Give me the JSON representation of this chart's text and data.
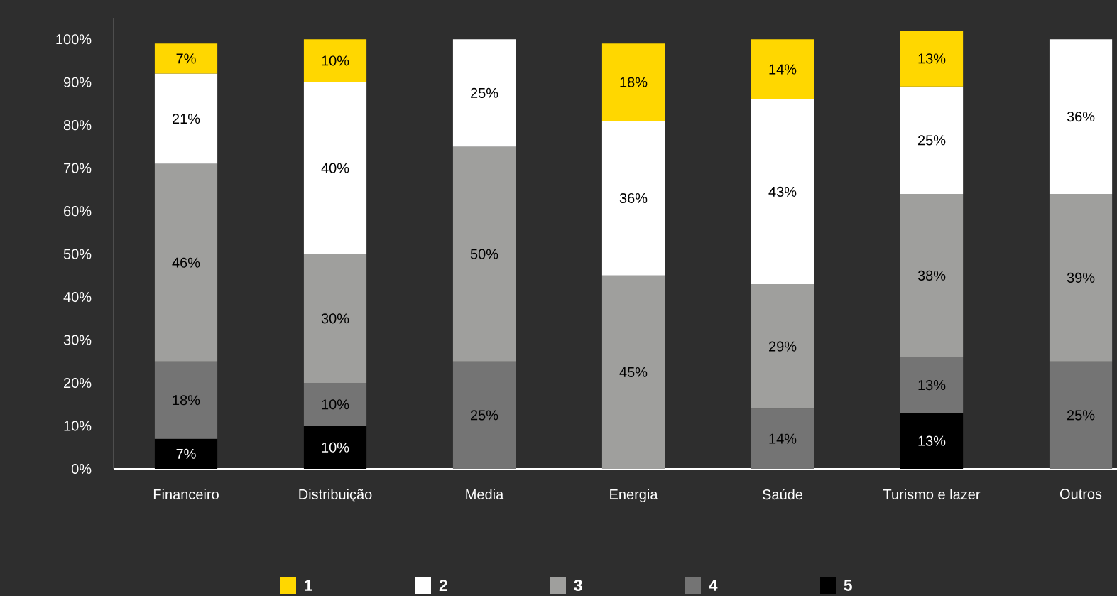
{
  "chart_data": {
    "type": "bar",
    "stacked": true,
    "categories": [
      "Financeiro",
      "Distribuição",
      "Media",
      "Energia",
      "Saúde",
      "Turismo e lazer",
      "Outros"
    ],
    "series": [
      {
        "name": "5",
        "color": "#000000",
        "values": [
          7,
          10,
          null,
          null,
          null,
          13,
          null
        ],
        "value_labels": [
          "7%",
          "10%",
          null,
          null,
          null,
          "13%",
          null
        ]
      },
      {
        "name": "4",
        "color": "#747474",
        "values": [
          18,
          10,
          25,
          null,
          14,
          13,
          25
        ],
        "value_labels": [
          "18%",
          "10%",
          "25%",
          null,
          "14%",
          "13%",
          "25%"
        ]
      },
      {
        "name": "3",
        "color": "#9f9f9d",
        "values": [
          46,
          30,
          50,
          45,
          29,
          38,
          39
        ],
        "value_labels": [
          "46%",
          "30%",
          "50%",
          "45%",
          "29%",
          "38%",
          "39%"
        ]
      },
      {
        "name": "2",
        "color": "#ffffff",
        "values": [
          21,
          40,
          25,
          36,
          43,
          25,
          36
        ],
        "value_labels": [
          "21%",
          "40%",
          "25%",
          "36%",
          "43%",
          "25%",
          "36%"
        ]
      },
      {
        "name": "1",
        "color": "#ffd700",
        "values": [
          7,
          10,
          null,
          18,
          14,
          13,
          null
        ],
        "value_labels": [
          "7%",
          "10%",
          null,
          "18%",
          "14%",
          "13%",
          null
        ]
      }
    ],
    "ylim": [
      0,
      105
    ],
    "yticks": [
      {
        "value": 0,
        "label": "0%"
      },
      {
        "value": 10,
        "label": "10%"
      },
      {
        "value": 20,
        "label": "20%"
      },
      {
        "value": 30,
        "label": "30%"
      },
      {
        "value": 40,
        "label": "40%"
      },
      {
        "value": 50,
        "label": "50%"
      },
      {
        "value": 60,
        "label": "60%"
      },
      {
        "value": 70,
        "label": "70%"
      },
      {
        "value": 80,
        "label": "80%"
      },
      {
        "value": 90,
        "label": "90%"
      },
      {
        "value": 100,
        "label": "100%"
      }
    ],
    "legend": "bottom"
  }
}
